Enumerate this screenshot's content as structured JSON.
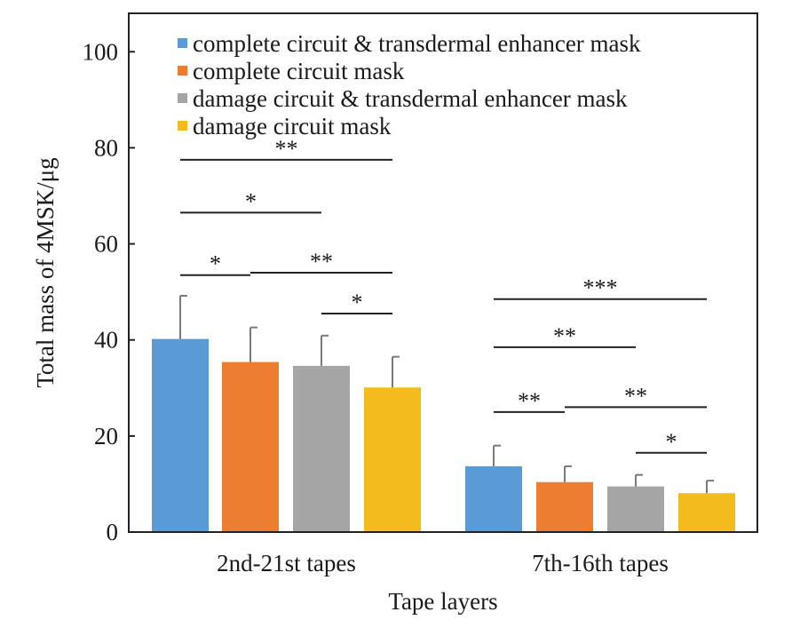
{
  "chart_data": {
    "type": "bar",
    "title": "",
    "xlabel": "Tape layers",
    "ylabel": "Total mass of 4MSK/μg",
    "ylim": [
      0,
      108
    ],
    "yticks": [
      "0",
      "20",
      "40",
      "60",
      "80",
      "100"
    ],
    "ytick_values": [
      0,
      20,
      40,
      60,
      80,
      100
    ],
    "categories": [
      "2nd-21st tapes",
      "7th-16th tapes"
    ],
    "series": [
      {
        "name": "complete circuit & transdermal enhancer mask",
        "color": "#5B9BD5",
        "values": [
          40.2,
          13.7
        ],
        "errors": [
          9.0,
          4.3
        ]
      },
      {
        "name": "complete circuit mask",
        "color": "#ED7D31",
        "values": [
          35.4,
          10.4
        ],
        "errors": [
          7.2,
          3.3
        ]
      },
      {
        "name": "damage circuit & transdermal enhancer mask",
        "color": "#A5A5A5",
        "values": [
          34.6,
          9.5
        ],
        "errors": [
          6.3,
          2.4
        ]
      },
      {
        "name": "damage circuit mask",
        "color": "#F2BB1E",
        "values": [
          30.1,
          8.1
        ],
        "errors": [
          6.4,
          2.6
        ]
      }
    ],
    "legend_position": "top-right",
    "grid": false,
    "significance": [
      {
        "category": 0,
        "from_series": 0,
        "to_series": 3,
        "y": 77.5,
        "label": "**"
      },
      {
        "category": 0,
        "from_series": 0,
        "to_series": 2,
        "y": 66.5,
        "label": "*"
      },
      {
        "category": 0,
        "from_series": 0,
        "to_series": 1,
        "y": 53.5,
        "label": "*"
      },
      {
        "category": 0,
        "from_series": 1,
        "to_series": 3,
        "y": 54.0,
        "label": "**"
      },
      {
        "category": 0,
        "from_series": 2,
        "to_series": 3,
        "y": 45.5,
        "label": "*"
      },
      {
        "category": 1,
        "from_series": 0,
        "to_series": 3,
        "y": 48.5,
        "label": "***"
      },
      {
        "category": 1,
        "from_series": 0,
        "to_series": 2,
        "y": 38.5,
        "label": "**"
      },
      {
        "category": 1,
        "from_series": 0,
        "to_series": 1,
        "y": 25.0,
        "label": "**"
      },
      {
        "category": 1,
        "from_series": 1,
        "to_series": 3,
        "y": 26.0,
        "label": "**"
      },
      {
        "category": 1,
        "from_series": 2,
        "to_series": 3,
        "y": 16.5,
        "label": "*"
      }
    ]
  }
}
